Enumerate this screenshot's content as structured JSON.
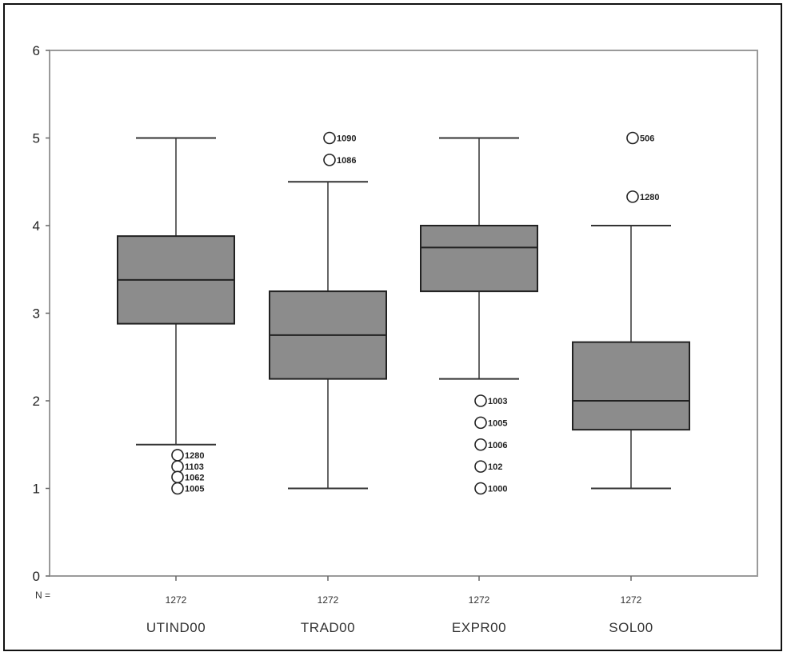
{
  "chart_data": {
    "type": "boxplot",
    "title": "",
    "xlabel": "",
    "ylabel": "",
    "ylim": [
      0,
      6
    ],
    "yticks": [
      0,
      1,
      2,
      3,
      4,
      5,
      6
    ],
    "grid": false,
    "n_prefix": "N =",
    "box_color": "#8c8c8c",
    "categories": [
      "UTIND00",
      "TRAD00",
      "EXPR00",
      "SOL00"
    ],
    "boxes": [
      {
        "name": "UTIND00",
        "n": "1272",
        "whisker_low": 1.5,
        "q1": 2.88,
        "median": 3.38,
        "q3": 3.88,
        "whisker_high": 5.0,
        "outliers": [
          {
            "y": 1.38,
            "label": "1280"
          },
          {
            "y": 1.25,
            "label": "1103"
          },
          {
            "y": 1.13,
            "label": "1062"
          },
          {
            "y": 1.0,
            "label": "1005"
          }
        ]
      },
      {
        "name": "TRAD00",
        "n": "1272",
        "whisker_low": 1.0,
        "q1": 2.25,
        "median": 2.75,
        "q3": 3.25,
        "whisker_high": 4.5,
        "outliers": [
          {
            "y": 5.0,
            "label": "1090"
          },
          {
            "y": 4.75,
            "label": "1086"
          }
        ]
      },
      {
        "name": "EXPR00",
        "n": "1272",
        "whisker_low": 2.25,
        "q1": 3.25,
        "median": 3.75,
        "q3": 4.0,
        "whisker_high": 5.0,
        "outliers": [
          {
            "y": 2.0,
            "label": "1003"
          },
          {
            "y": 1.75,
            "label": "1005"
          },
          {
            "y": 1.5,
            "label": "1006"
          },
          {
            "y": 1.25,
            "label": "102"
          },
          {
            "y": 1.0,
            "label": "1000"
          }
        ]
      },
      {
        "name": "SOL00",
        "n": "1272",
        "whisker_low": 1.0,
        "q1": 1.67,
        "median": 2.0,
        "q3": 2.67,
        "whisker_high": 4.0,
        "outliers": [
          {
            "y": 5.0,
            "label": "506"
          },
          {
            "y": 4.33,
            "label": "1280"
          }
        ]
      }
    ]
  }
}
